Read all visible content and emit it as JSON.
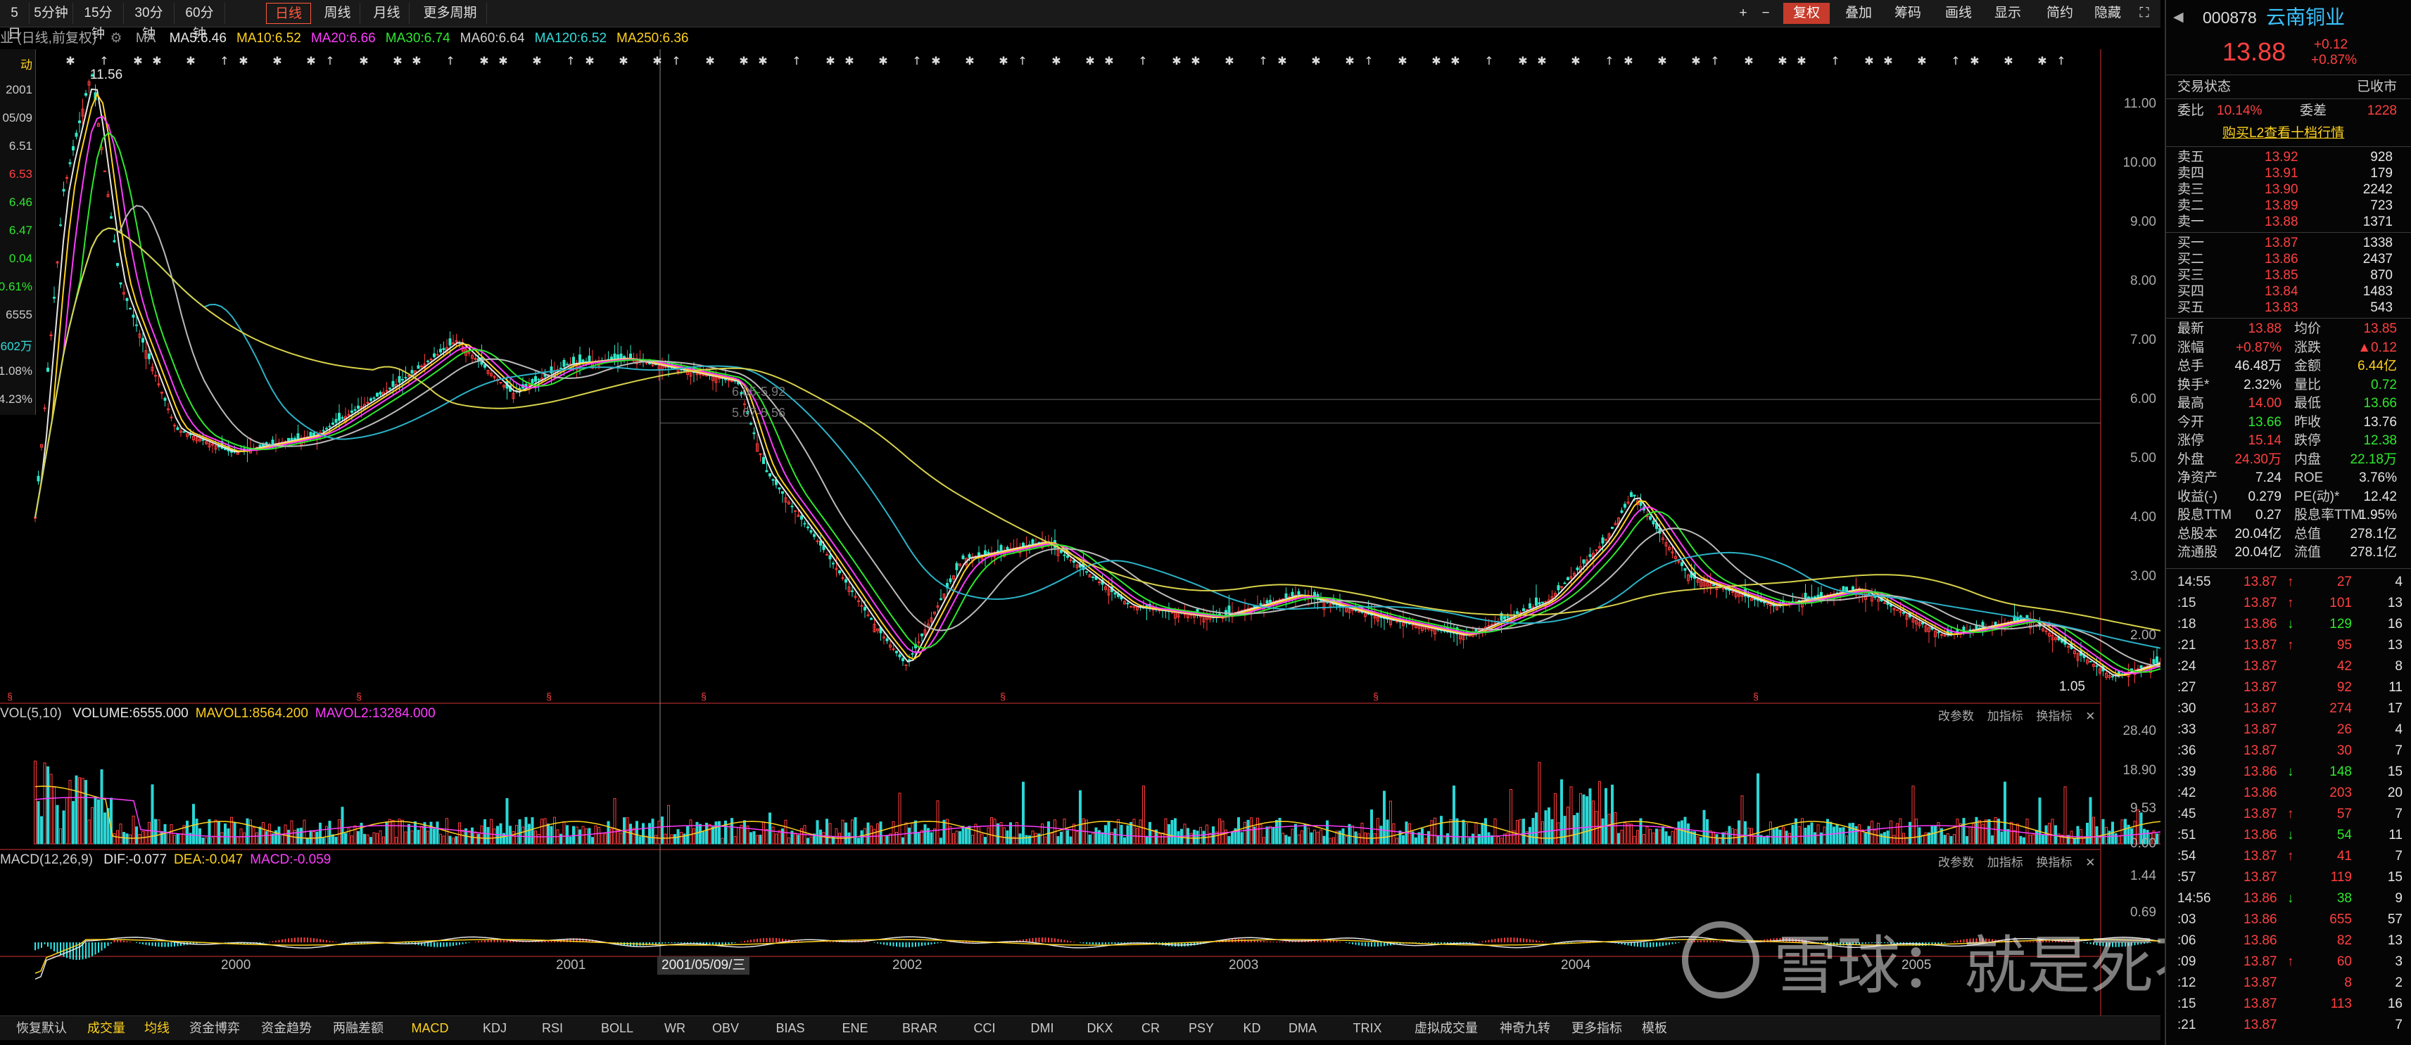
{
  "toolbar": {
    "periods": [
      "5日",
      "5分钟",
      "15分钟",
      "30分钟",
      "60分钟",
      "日线",
      "周线",
      "月线",
      "更多周期"
    ],
    "active_period": "日线",
    "right_buttons": [
      "复权",
      "叠加",
      "筹码",
      "画线",
      "显示",
      "简约",
      "隐藏"
    ]
  },
  "ma_bar": {
    "prefix": "业 (日线,前复权)",
    "label": "MA",
    "items": [
      {
        "text": "MA5:6.46",
        "color": "#e6e6e6"
      },
      {
        "text": "MA10:6.52",
        "color": "#ffd21e"
      },
      {
        "text": "MA20:6.66",
        "color": "#ff3cff"
      },
      {
        "text": "MA30:6.74",
        "color": "#2ee82e"
      },
      {
        "text": "MA60:6.64",
        "color": "#cfcfcf"
      },
      {
        "text": "MA120:6.52",
        "color": "#3dd"
      },
      {
        "text": "MA250:6.36",
        "color": "#ffd21e"
      }
    ]
  },
  "main_chart": {
    "y_ticks": [
      "11.00",
      "10.00",
      "9.00",
      "8.00",
      "7.00",
      "6.00",
      "5.00",
      "4.00",
      "3.00",
      "2.00"
    ],
    "max_label": "11.56",
    "min_label": "1.05",
    "ref_labels": [
      "6.05-5.92",
      "5.67-5.56"
    ],
    "years": [
      "2000",
      "2001",
      "2002",
      "2003",
      "2004",
      "2005"
    ],
    "cursor_date": "2001/05/09/三"
  },
  "left_info": [
    "动",
    "2001",
    "05/09",
    "6.51",
    "6.53",
    "6.46",
    "6.47",
    "0.04",
    "0.61%",
    "6555",
    "602万",
    "1.08%",
    "4.23%"
  ],
  "vol_panel": {
    "title": "VOL(5,10)",
    "items": [
      {
        "text": "VOLUME:6555.000",
        "color": "#e6e6e6"
      },
      {
        "text": "MAVOL1:8564.200",
        "color": "#ffd21e"
      },
      {
        "text": "MAVOL2:13284.000",
        "color": "#ff3cff"
      }
    ],
    "y_ticks": [
      "28.40",
      "18.90",
      "9.53",
      "0.00"
    ],
    "ops": [
      "改参数",
      "加指标",
      "换指标"
    ]
  },
  "macd_panel": {
    "title": "MACD(12,26,9)",
    "items": [
      {
        "text": "DIF:-0.077",
        "color": "#e6e6e6"
      },
      {
        "text": "DEA:-0.047",
        "color": "#ffd21e"
      },
      {
        "text": "MACD:-0.059",
        "color": "#ff3cff"
      }
    ],
    "y_ticks": [
      "1.44",
      "0.69"
    ],
    "ops": [
      "改参数",
      "加指标",
      "换指标"
    ]
  },
  "bottom_tabs": [
    "恢复默认",
    "成交量",
    "均线",
    "资金博弈",
    "资金趋势",
    "两融差额",
    "MACD",
    "KDJ",
    "RSI",
    "BOLL",
    "WR",
    "OBV",
    "BIAS",
    "ENE",
    "BRAR",
    "CCI",
    "DMI",
    "DKX",
    "CR",
    "PSY",
    "KD",
    "DMA",
    "TRIX",
    "虚拟成交量",
    "神奇九转",
    "更多指标",
    "模板"
  ],
  "stock": {
    "code": "000878",
    "name": "云南铜业",
    "price": "13.88",
    "change": "+0.12",
    "change_pct": "+0.87%",
    "trade_status_label": "交易状态",
    "trade_status": "已收市",
    "weibi_label": "委比",
    "weibi": "10.14%",
    "weicha_label": "委差",
    "weicha": "1228",
    "l2_link": "购买L2查看十档行情"
  },
  "asks": [
    {
      "label": "卖五",
      "price": "13.92",
      "vol": "928"
    },
    {
      "label": "卖四",
      "price": "13.91",
      "vol": "179"
    },
    {
      "label": "卖三",
      "price": "13.90",
      "vol": "2242"
    },
    {
      "label": "卖二",
      "price": "13.89",
      "vol": "723"
    },
    {
      "label": "卖一",
      "price": "13.88",
      "vol": "1371"
    }
  ],
  "bids": [
    {
      "label": "买一",
      "price": "13.87",
      "vol": "1338"
    },
    {
      "label": "买二",
      "price": "13.86",
      "vol": "2437"
    },
    {
      "label": "买三",
      "price": "13.85",
      "vol": "870"
    },
    {
      "label": "买四",
      "price": "13.84",
      "vol": "1483"
    },
    {
      "label": "买五",
      "price": "13.83",
      "vol": "543"
    }
  ],
  "quote": [
    {
      "l1": "最新",
      "v1": "13.88",
      "c1": "red",
      "l2": "均价",
      "v2": "13.85",
      "c2": "red"
    },
    {
      "l1": "涨幅",
      "v1": "+0.87%",
      "c1": "red",
      "l2": "涨跌",
      "v2": "▲0.12",
      "c2": "red"
    },
    {
      "l1": "总手",
      "v1": "46.48万",
      "c1": "white",
      "l2": "金额",
      "v2": "6.44亿",
      "c2": "yellow"
    },
    {
      "l1": "换手*",
      "v1": "2.32%",
      "c1": "white",
      "l2": "量比",
      "v2": "0.72",
      "c2": "green"
    },
    {
      "l1": "最高",
      "v1": "14.00",
      "c1": "red",
      "l2": "最低",
      "v2": "13.66",
      "c2": "green"
    },
    {
      "l1": "今开",
      "v1": "13.66",
      "c1": "green",
      "l2": "昨收",
      "v2": "13.76",
      "c2": "white"
    },
    {
      "l1": "涨停",
      "v1": "15.14",
      "c1": "red",
      "l2": "跌停",
      "v2": "12.38",
      "c2": "green"
    },
    {
      "l1": "外盘",
      "v1": "24.30万",
      "c1": "red",
      "l2": "内盘",
      "v2": "22.18万",
      "c2": "green"
    },
    {
      "l1": "净资产",
      "v1": "7.24",
      "c1": "white",
      "l2": "ROE",
      "v2": "3.76%",
      "c2": "white"
    },
    {
      "l1": "收益(-)",
      "v1": "0.279",
      "c1": "white",
      "l2": "PE(动)*",
      "v2": "12.42",
      "c2": "white"
    },
    {
      "l1": "股息TTM",
      "v1": "0.27",
      "c1": "white",
      "l2": "股息率TTM",
      "v2": "1.95%",
      "c2": "white"
    },
    {
      "l1": "总股本",
      "v1": "20.04亿",
      "c1": "white",
      "l2": "总值",
      "v2": "278.1亿",
      "c2": "white"
    },
    {
      "l1": "流通股",
      "v1": "20.04亿",
      "c1": "white",
      "l2": "流值",
      "v2": "278.1亿",
      "c2": "white"
    }
  ],
  "ticks_header": "14:55",
  "ticks": [
    {
      "t": "14:55",
      "p": "13.87",
      "a": "↑",
      "v": "27",
      "n": "4"
    },
    {
      "t": ":15",
      "p": "13.87",
      "a": "↑",
      "v": "101",
      "n": "13"
    },
    {
      "t": ":18",
      "p": "13.86",
      "a": "↓",
      "v": "129",
      "n": "16"
    },
    {
      "t": ":21",
      "p": "13.87",
      "a": "↑",
      "v": "95",
      "n": "13"
    },
    {
      "t": ":24",
      "p": "13.87",
      "a": "",
      "v": "42",
      "n": "8"
    },
    {
      "t": ":27",
      "p": "13.87",
      "a": "",
      "v": "92",
      "n": "11"
    },
    {
      "t": ":30",
      "p": "13.87",
      "a": "",
      "v": "274",
      "n": "17"
    },
    {
      "t": ":33",
      "p": "13.87",
      "a": "",
      "v": "26",
      "n": "4"
    },
    {
      "t": ":36",
      "p": "13.87",
      "a": "",
      "v": "30",
      "n": "7"
    },
    {
      "t": ":39",
      "p": "13.86",
      "a": "↓",
      "v": "148",
      "n": "15"
    },
    {
      "t": ":42",
      "p": "13.86",
      "a": "",
      "v": "203",
      "n": "20"
    },
    {
      "t": ":45",
      "p": "13.87",
      "a": "↑",
      "v": "57",
      "n": "7"
    },
    {
      "t": ":51",
      "p": "13.86",
      "a": "↓",
      "v": "54",
      "n": "11"
    },
    {
      "t": ":54",
      "p": "13.87",
      "a": "↑",
      "v": "41",
      "n": "7"
    },
    {
      "t": ":57",
      "p": "13.87",
      "a": "",
      "v": "119",
      "n": "15"
    },
    {
      "t": "14:56",
      "p": "13.86",
      "a": "↓",
      "v": "38",
      "n": "9"
    },
    {
      "t": ":03",
      "p": "13.86",
      "a": "",
      "v": "655",
      "n": "57"
    },
    {
      "t": ":06",
      "p": "13.86",
      "a": "",
      "v": "82",
      "n": "13"
    },
    {
      "t": ":09",
      "p": "13.87",
      "a": "↑",
      "v": "60",
      "n": "3"
    },
    {
      "t": ":12",
      "p": "13.87",
      "a": "",
      "v": "8",
      "n": "2"
    },
    {
      "t": ":15",
      "p": "13.87",
      "a": "",
      "v": "113",
      "n": "16"
    },
    {
      "t": ":21",
      "p": "13.87",
      "a": "",
      "v": "",
      "n": "7"
    }
  ],
  "watermark": "雪球：就是死不了",
  "chart_data": {
    "type": "candlestick",
    "x_range": [
      "1999",
      "2005"
    ],
    "ylim": [
      1.05,
      11.56
    ],
    "years": [
      "2000",
      "2001",
      "2002",
      "2003",
      "2004",
      "2005"
    ],
    "close_approx": [
      {
        "x": "1999-06",
        "y": 4.0
      },
      {
        "x": "1999-07",
        "y": 9.5
      },
      {
        "x": "1999-08",
        "y": 11.56
      },
      {
        "x": "1999-09",
        "y": 8.0
      },
      {
        "x": "1999-11",
        "y": 5.5
      },
      {
        "x": "2000-01",
        "y": 5.1
      },
      {
        "x": "2000-04",
        "y": 5.4
      },
      {
        "x": "2000-07",
        "y": 6.3
      },
      {
        "x": "2000-09",
        "y": 7.0
      },
      {
        "x": "2000-11",
        "y": 6.1
      },
      {
        "x": "2001-01",
        "y": 6.6
      },
      {
        "x": "2001-03",
        "y": 6.7
      },
      {
        "x": "2001-05",
        "y": 6.5
      },
      {
        "x": "2001-07",
        "y": 6.3
      },
      {
        "x": "2001-08",
        "y": 4.8
      },
      {
        "x": "2001-10",
        "y": 3.5
      },
      {
        "x": "2001-12",
        "y": 2.1
      },
      {
        "x": "2002-01",
        "y": 1.5
      },
      {
        "x": "2002-03",
        "y": 3.3
      },
      {
        "x": "2002-06",
        "y": 3.6
      },
      {
        "x": "2002-09",
        "y": 2.5
      },
      {
        "x": "2002-12",
        "y": 2.3
      },
      {
        "x": "2003-03",
        "y": 2.7
      },
      {
        "x": "2003-06",
        "y": 2.3
      },
      {
        "x": "2003-09",
        "y": 2.0
      },
      {
        "x": "2003-12",
        "y": 2.6
      },
      {
        "x": "2004-02",
        "y": 3.6
      },
      {
        "x": "2004-03",
        "y": 4.4
      },
      {
        "x": "2004-05",
        "y": 3.0
      },
      {
        "x": "2004-08",
        "y": 2.5
      },
      {
        "x": "2004-11",
        "y": 2.8
      },
      {
        "x": "2005-02",
        "y": 2.0
      },
      {
        "x": "2005-05",
        "y": 2.3
      },
      {
        "x": "2005-08",
        "y": 1.3
      },
      {
        "x": "2005-10",
        "y": 1.6
      }
    ]
  }
}
